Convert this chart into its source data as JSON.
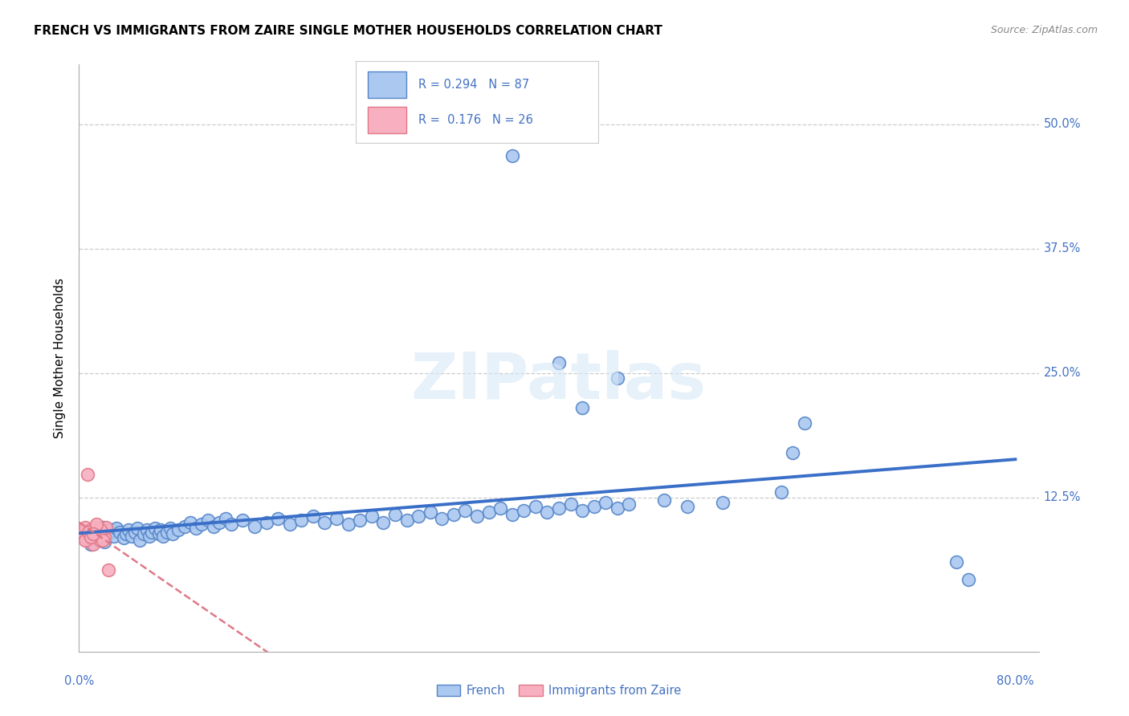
{
  "title": "FRENCH VS IMMIGRANTS FROM ZAIRE SINGLE MOTHER HOUSEHOLDS CORRELATION CHART",
  "source": "Source: ZipAtlas.com",
  "ylabel": "Single Mother Households",
  "xlim": [
    0.0,
    0.82
  ],
  "ylim": [
    -0.03,
    0.56
  ],
  "blue_color": "#aac8f0",
  "blue_edge_color": "#5585c8",
  "blue_line_color": "#3a6fc8",
  "pink_color": "#f8b0c0",
  "pink_edge_color": "#e07888",
  "pink_line_color": "#e07888",
  "tick_label_color": "#4472c4",
  "grid_color": "#cccccc",
  "background_color": "#ffffff",
  "R_blue": 0.294,
  "N_blue": 87,
  "R_pink": 0.176,
  "N_pink": 26,
  "watermark": "ZIPatlas",
  "ytick_vals": [
    0.0,
    0.125,
    0.25,
    0.375,
    0.5
  ],
  "legend_labels": [
    "French",
    "Immigrants from Zaire"
  ],
  "french_x": [
    0.005,
    0.008,
    0.01,
    0.012,
    0.015,
    0.018,
    0.02,
    0.022,
    0.025,
    0.028,
    0.03,
    0.032,
    0.035,
    0.038,
    0.04,
    0.042,
    0.045,
    0.048,
    0.05,
    0.052,
    0.055,
    0.058,
    0.06,
    0.062,
    0.065,
    0.068,
    0.07,
    0.072,
    0.075,
    0.078,
    0.08,
    0.085,
    0.09,
    0.095,
    0.1,
    0.105,
    0.11,
    0.115,
    0.12,
    0.125,
    0.13,
    0.14,
    0.15,
    0.16,
    0.17,
    0.18,
    0.19,
    0.2,
    0.21,
    0.22,
    0.23,
    0.24,
    0.25,
    0.26,
    0.27,
    0.28,
    0.29,
    0.3,
    0.31,
    0.32,
    0.33,
    0.34,
    0.35,
    0.36,
    0.37,
    0.38,
    0.39,
    0.4,
    0.41,
    0.42,
    0.43,
    0.44,
    0.45,
    0.46,
    0.47,
    0.5,
    0.52,
    0.55,
    0.6,
    0.61,
    0.62,
    0.75,
    0.76,
    0.37,
    0.41,
    0.43,
    0.46
  ],
  "french_y": [
    0.085,
    0.09,
    0.078,
    0.092,
    0.088,
    0.082,
    0.095,
    0.08,
    0.088,
    0.092,
    0.086,
    0.094,
    0.09,
    0.084,
    0.088,
    0.092,
    0.086,
    0.09,
    0.094,
    0.082,
    0.088,
    0.092,
    0.086,
    0.09,
    0.094,
    0.088,
    0.092,
    0.086,
    0.09,
    0.094,
    0.088,
    0.092,
    0.096,
    0.1,
    0.094,
    0.098,
    0.102,
    0.096,
    0.1,
    0.104,
    0.098,
    0.102,
    0.096,
    0.1,
    0.104,
    0.098,
    0.102,
    0.106,
    0.1,
    0.104,
    0.098,
    0.102,
    0.106,
    0.1,
    0.108,
    0.102,
    0.106,
    0.11,
    0.104,
    0.108,
    0.112,
    0.106,
    0.11,
    0.114,
    0.108,
    0.112,
    0.116,
    0.11,
    0.114,
    0.118,
    0.112,
    0.116,
    0.12,
    0.114,
    0.118,
    0.122,
    0.116,
    0.12,
    0.13,
    0.17,
    0.2,
    0.06,
    0.042,
    0.468,
    0.26,
    0.215,
    0.245
  ],
  "zaire_x": [
    0.003,
    0.005,
    0.007,
    0.008,
    0.01,
    0.01,
    0.012,
    0.013,
    0.015,
    0.015,
    0.017,
    0.018,
    0.02,
    0.02,
    0.022,
    0.023,
    0.005,
    0.008,
    0.012,
    0.018,
    0.01,
    0.015,
    0.007,
    0.02,
    0.025,
    0.012
  ],
  "zaire_y": [
    0.09,
    0.095,
    0.082,
    0.088,
    0.092,
    0.085,
    0.078,
    0.09,
    0.088,
    0.095,
    0.085,
    0.082,
    0.092,
    0.088,
    0.085,
    0.095,
    0.082,
    0.09,
    0.088,
    0.092,
    0.085,
    0.098,
    0.148,
    0.082,
    0.052,
    0.088
  ]
}
